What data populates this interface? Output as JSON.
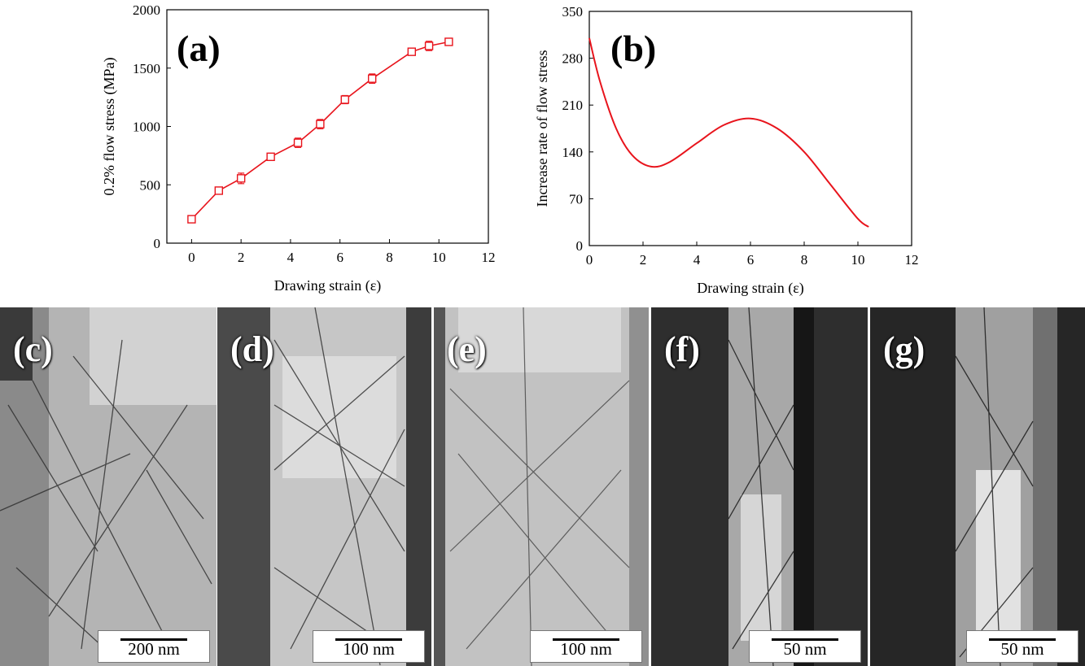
{
  "chart_data": [
    {
      "panel": "(a)",
      "type": "line",
      "xlabel": "Drawing strain (ε)",
      "ylabel": "0.2% flow stress (MPa)",
      "xlim": [
        -1,
        12
      ],
      "ylim": [
        0,
        2000
      ],
      "xticks": [
        0,
        2,
        4,
        6,
        8,
        10,
        12
      ],
      "yticks": [
        0,
        500,
        1000,
        1500,
        2000
      ],
      "grid": false,
      "marker": "open-square with error bars",
      "series": [
        {
          "x": [
            0,
            1.1,
            2.0,
            3.2,
            4.3,
            5.2,
            6.2,
            7.3,
            8.9,
            9.6,
            10.4
          ],
          "y": [
            205,
            450,
            555,
            740,
            860,
            1020,
            1230,
            1410,
            1640,
            1690,
            1725
          ],
          "err": [
            25,
            25,
            45,
            25,
            40,
            40,
            35,
            40,
            25,
            40,
            30
          ]
        }
      ]
    },
    {
      "panel": "(b)",
      "type": "line",
      "xlabel": "Drawing strain (ε)",
      "ylabel": "Increase rate of flow stress",
      "xlim": [
        0,
        12
      ],
      "ylim": [
        0,
        350
      ],
      "xticks": [
        0,
        2,
        4,
        6,
        8,
        10,
        12
      ],
      "yticks": [
        0,
        70,
        140,
        210,
        280,
        350
      ],
      "grid": false,
      "series": [
        {
          "x": [
            0,
            0.4,
            1.0,
            1.6,
            2.3,
            3.0,
            4.0,
            5.0,
            6.0,
            7.0,
            8.0,
            9.0,
            10.0,
            10.4
          ],
          "y": [
            310,
            245,
            175,
            135,
            118,
            125,
            153,
            180,
            190,
            175,
            140,
            90,
            40,
            28
          ]
        }
      ]
    }
  ],
  "micrographs": [
    {
      "label": "(c)",
      "scale": "200 nm"
    },
    {
      "label": "(d)",
      "scale": "100 nm"
    },
    {
      "label": "(e)",
      "scale": "100 nm"
    },
    {
      "label": "(f)",
      "scale": "50 nm"
    },
    {
      "label": "(g)",
      "scale": "50 nm"
    }
  ],
  "colors": {
    "curve": "#e8141c",
    "axis": "#000000"
  }
}
